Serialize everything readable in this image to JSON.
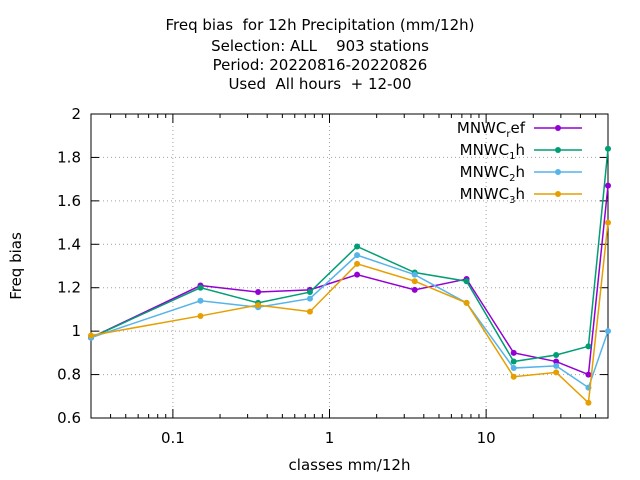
{
  "chart_data": {
    "type": "line",
    "title_lines": [
      "Freq bias  for 12h Precipitation (mm/12h)",
      "Selection: ALL    903 stations",
      "Period: 20220816-20220826",
      "Used  All hours  + 12-00"
    ],
    "xlabel": "classes mm/12h",
    "ylabel": "Freq bias",
    "x_scale": "log",
    "xlim": [
      0.03,
      60
    ],
    "ylim": [
      0.6,
      2.0
    ],
    "x_ticks": [
      {
        "value": 0.1,
        "label": "0.1"
      },
      {
        "value": 1,
        "label": "1"
      },
      {
        "value": 10,
        "label": "10"
      }
    ],
    "y_ticks": [
      {
        "value": 0.6,
        "label": "0.6"
      },
      {
        "value": 0.8,
        "label": "0.8"
      },
      {
        "value": 1.0,
        "label": "1"
      },
      {
        "value": 1.2,
        "label": "1.2"
      },
      {
        "value": 1.4,
        "label": "1.4"
      },
      {
        "value": 1.6,
        "label": "1.6"
      },
      {
        "value": 1.8,
        "label": "1.8"
      },
      {
        "value": 2.0,
        "label": "2"
      }
    ],
    "grid": true,
    "legend_position": "top-right",
    "x": [
      0.03,
      0.15,
      0.35,
      0.75,
      1.5,
      3.5,
      7.5,
      15,
      28,
      45,
      60
    ],
    "series": [
      {
        "name": "MNWC_ref",
        "legend_base": "MNWC",
        "legend_sub": "r",
        "legend_suffix": "ef",
        "color": "#9400d3",
        "values": [
          0.97,
          1.21,
          1.18,
          1.19,
          1.26,
          1.19,
          1.24,
          0.9,
          0.86,
          0.8,
          1.67
        ]
      },
      {
        "name": "MNWC_1h",
        "legend_base": "MNWC",
        "legend_sub": "1",
        "legend_suffix": "h",
        "color": "#009e73",
        "values": [
          0.97,
          1.2,
          1.13,
          1.18,
          1.39,
          1.27,
          1.23,
          0.86,
          0.89,
          0.93,
          1.84
        ]
      },
      {
        "name": "MNWC_2h",
        "legend_base": "MNWC",
        "legend_sub": "2",
        "legend_suffix": "h",
        "color": "#56b4e9",
        "values": [
          0.97,
          1.14,
          1.11,
          1.15,
          1.35,
          1.26,
          1.13,
          0.83,
          0.84,
          0.74,
          1.0
        ]
      },
      {
        "name": "MNWC_3h",
        "legend_base": "MNWC",
        "legend_sub": "3",
        "legend_suffix": "h",
        "color": "#e69f00",
        "values": [
          0.98,
          1.07,
          1.12,
          1.09,
          1.31,
          1.23,
          1.13,
          0.79,
          0.81,
          0.67,
          1.5
        ]
      }
    ]
  }
}
